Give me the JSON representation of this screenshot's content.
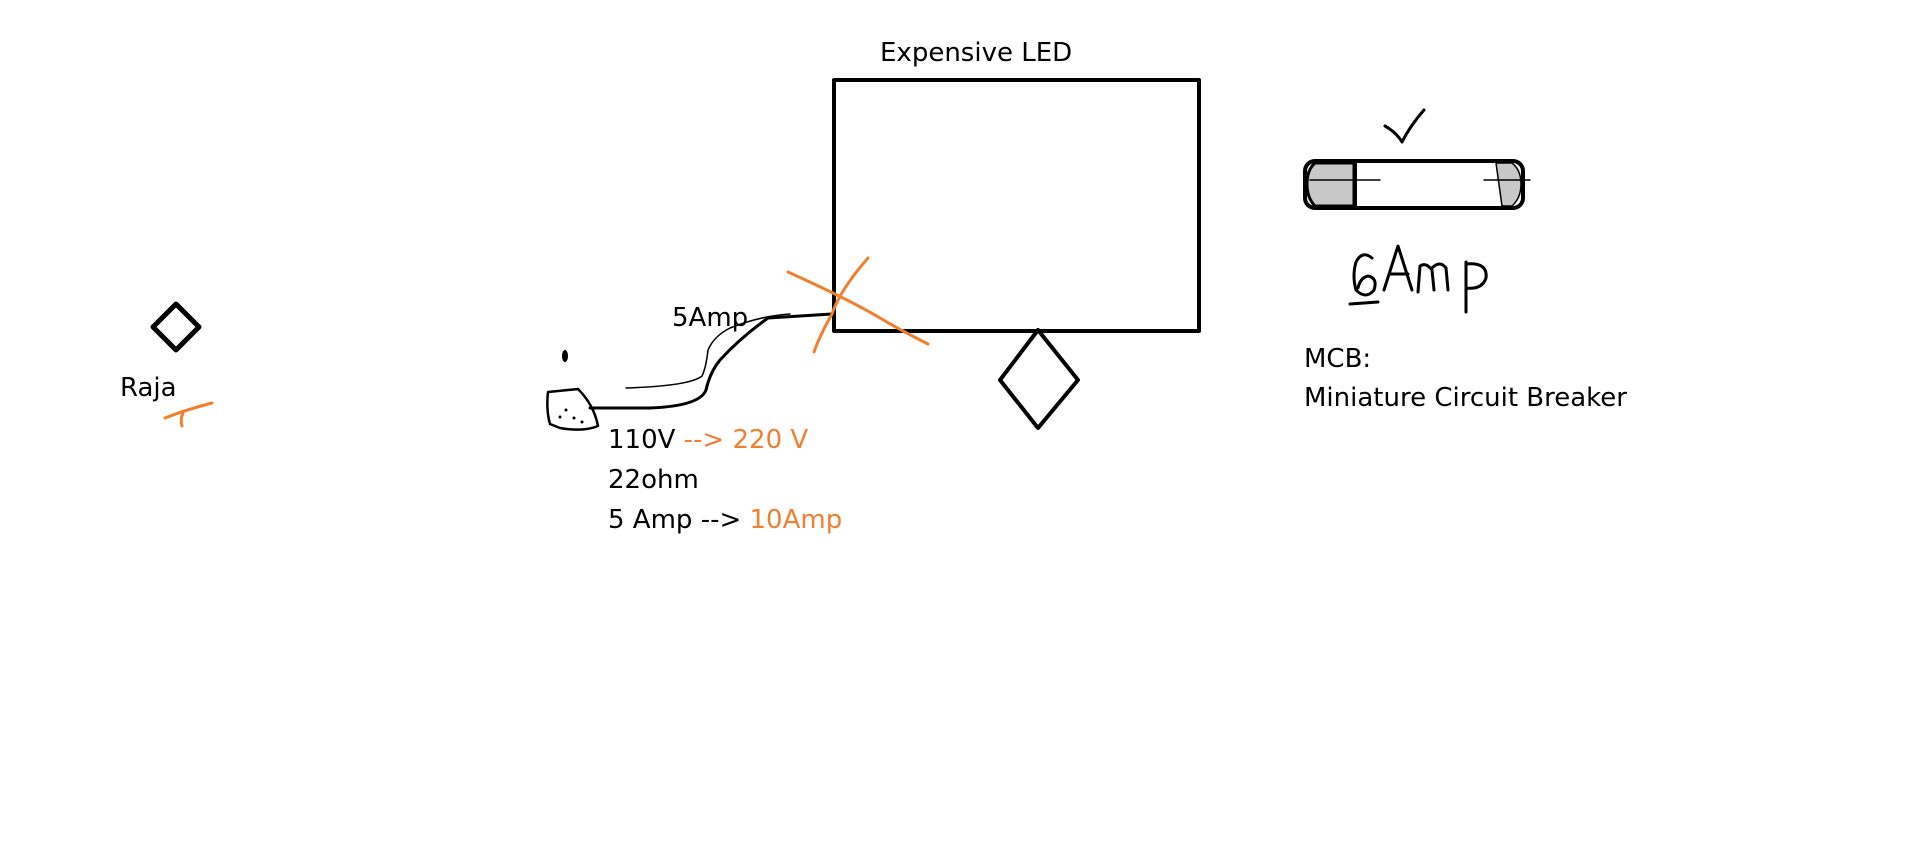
{
  "colors": {
    "ink": "#000000",
    "accent": "#f08030",
    "fuse_cap": "#c8c8c8",
    "background": "#ffffff"
  },
  "led": {
    "title": "Expensive LED"
  },
  "person": {
    "name": "Raja"
  },
  "wire": {
    "current_label": "5Amp"
  },
  "specs": {
    "voltage_old": "110V",
    "voltage_arrow": " --> ",
    "voltage_new": "220 V",
    "resistance": "22ohm",
    "current_old": "5 Amp -->",
    "current_new": "10Amp"
  },
  "fuse": {
    "rating_handwritten": "6Amp"
  },
  "mcb": {
    "abbrev": "MCB:",
    "full_name": "Miniature Circuit Breaker"
  }
}
